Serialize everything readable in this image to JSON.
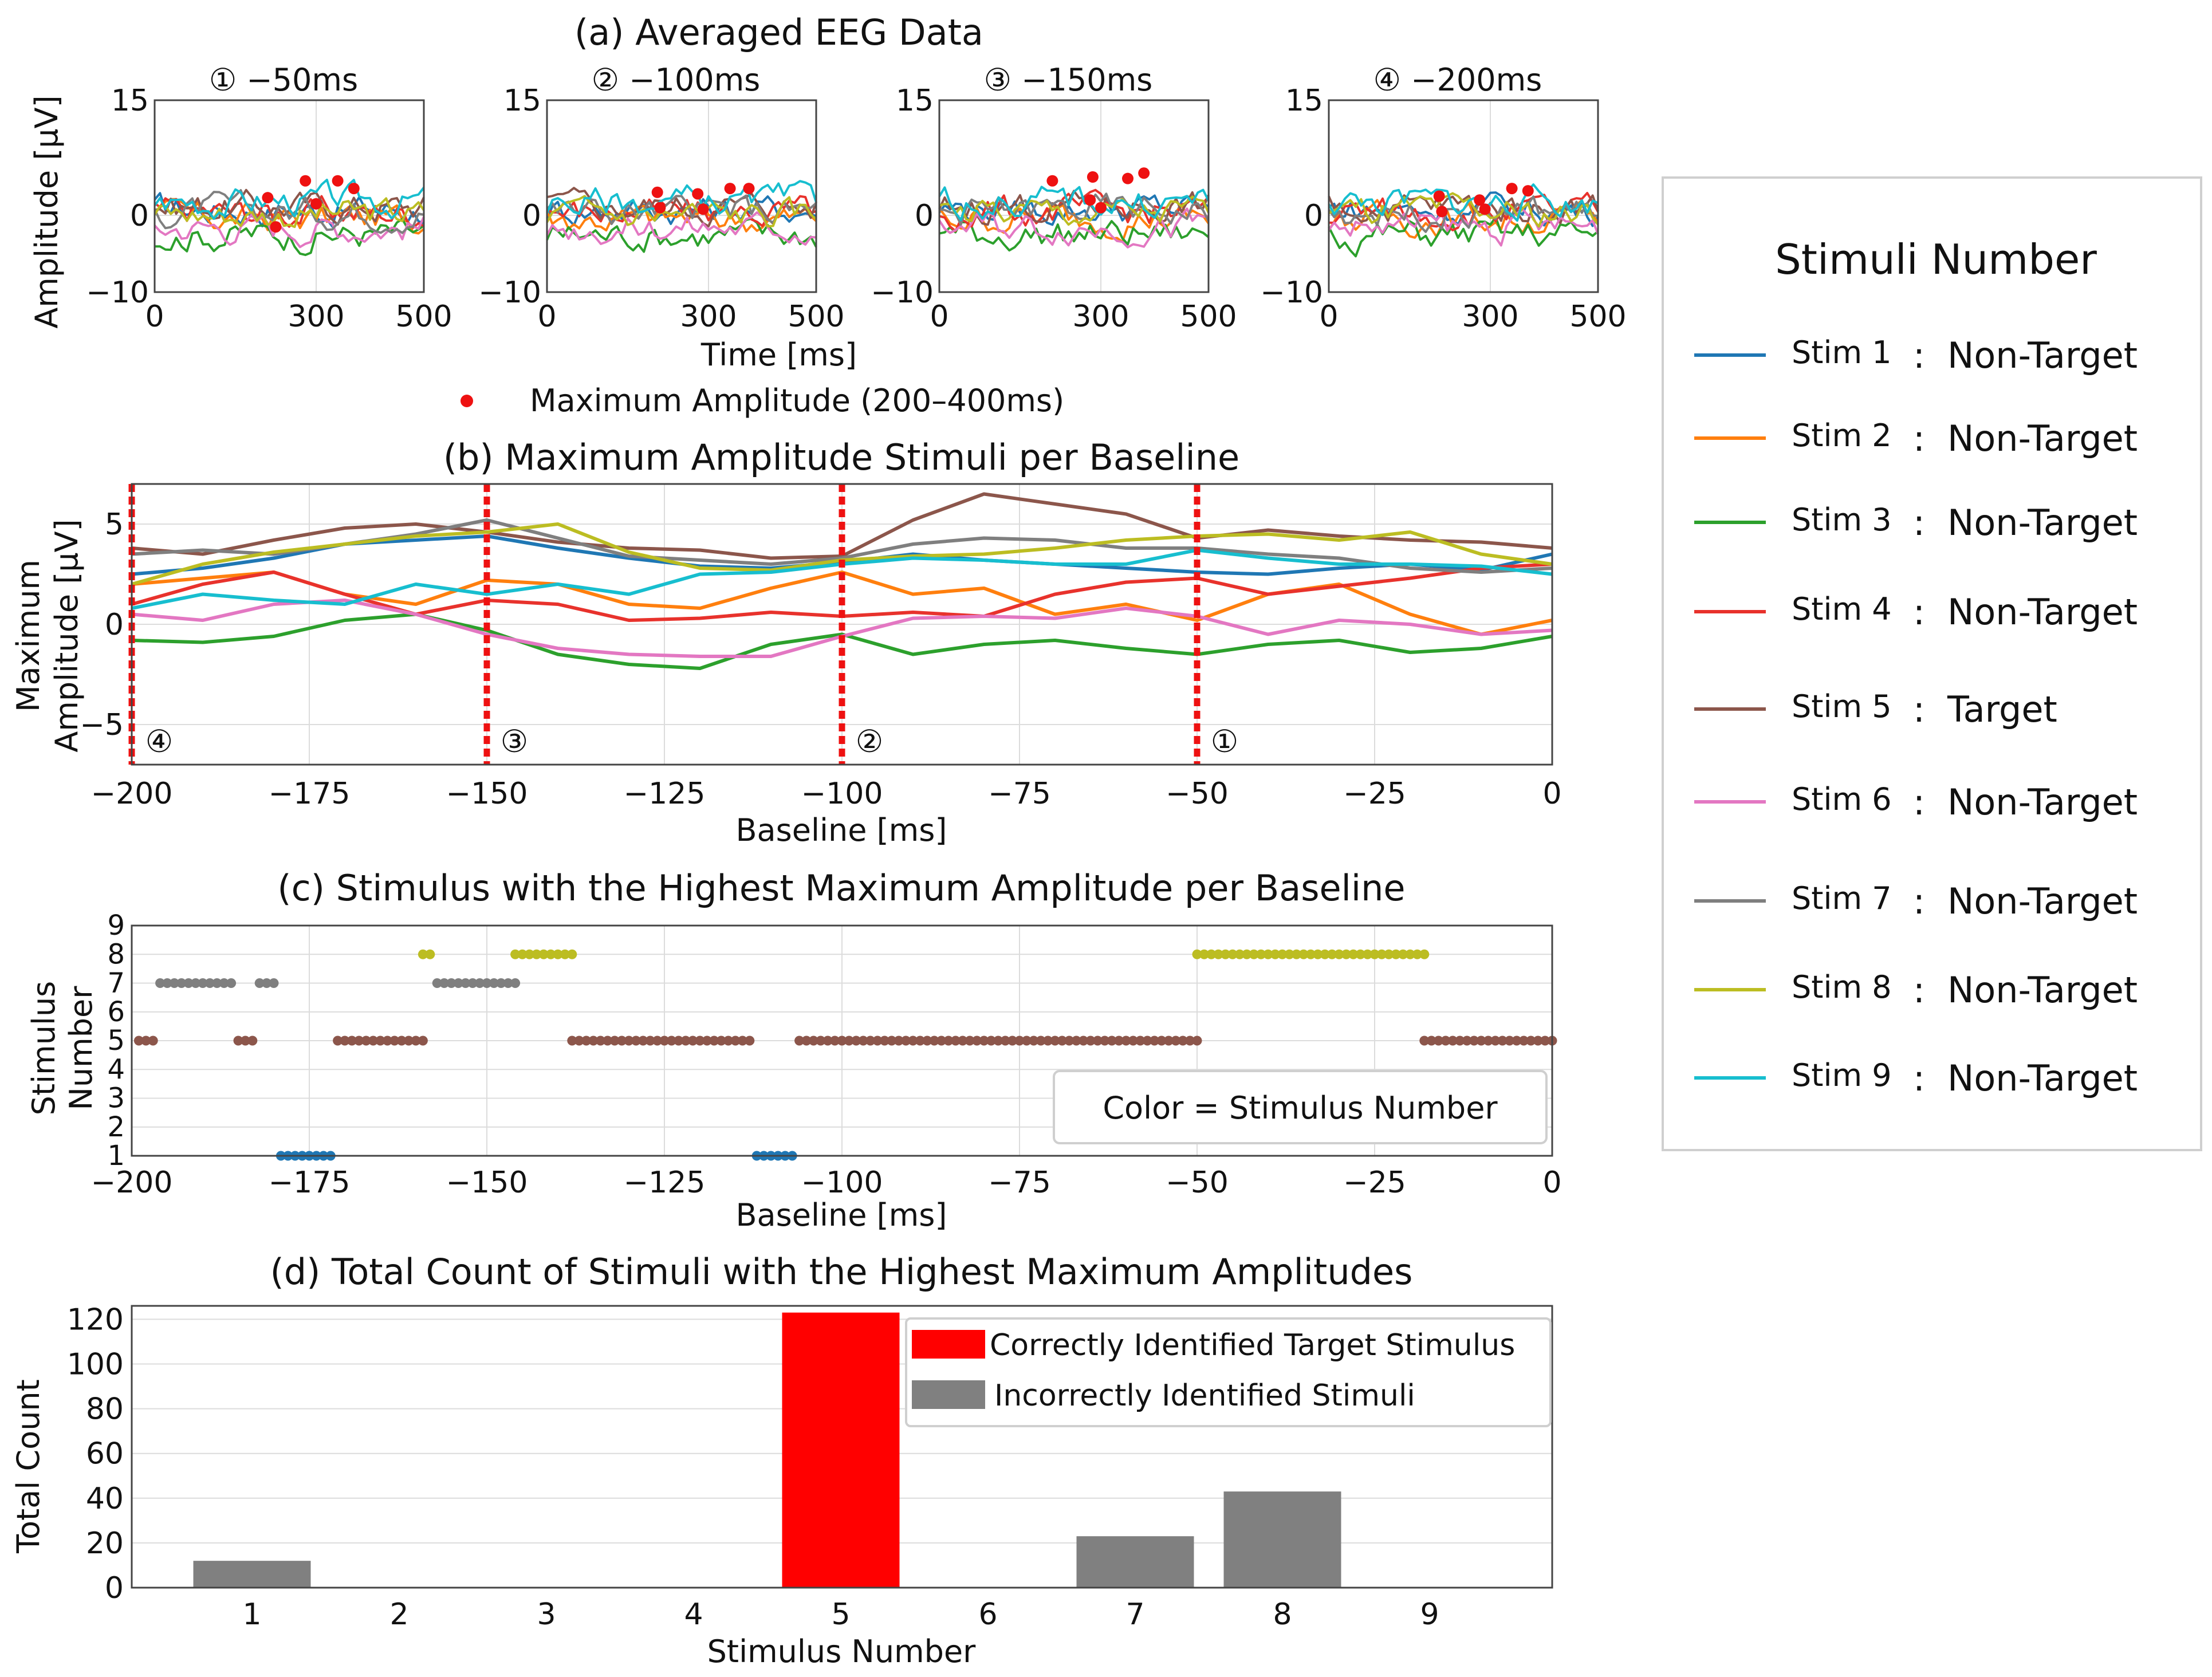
{
  "figure": {
    "legend": {
      "title": "Stimuli Number",
      "entries": [
        {
          "stim": "Stim 1",
          "sep": ":",
          "role": "Non-Target",
          "color": "#1f77b4",
          "role_color": "#111111"
        },
        {
          "stim": "Stim 2",
          "sep": ":",
          "role": "Non-Target",
          "color": "#ff7f0e",
          "role_color": "#111111"
        },
        {
          "stim": "Stim 3",
          "sep": ":",
          "role": "Non-Target",
          "color": "#2ca02c",
          "role_color": "#111111"
        },
        {
          "stim": "Stim 4",
          "sep": ":",
          "role": "Non-Target",
          "color": "#e8322c",
          "role_color": "#111111"
        },
        {
          "stim": "Stim 5",
          "sep": ":",
          "role": "Target",
          "color": "#8c564b",
          "role_color": "#ee1111"
        },
        {
          "stim": "Stim 6",
          "sep": ":",
          "role": "Non-Target",
          "color": "#e377c2",
          "role_color": "#111111"
        },
        {
          "stim": "Stim 7",
          "sep": ":",
          "role": "Non-Target",
          "color": "#7f7f7f",
          "role_color": "#111111"
        },
        {
          "stim": "Stim 8",
          "sep": ":",
          "role": "Non-Target",
          "color": "#bcbd22",
          "role_color": "#111111"
        },
        {
          "stim": "Stim 9",
          "sep": ":",
          "role": "Non-Target",
          "color": "#17becf",
          "role_color": "#111111"
        }
      ]
    }
  },
  "chart_data": [
    {
      "id": "a",
      "type": "line",
      "title": "(a) Averaged EEG Data",
      "xlabel": "Time [ms]",
      "ylabel": "Amplitude [μV]",
      "xlim": [
        0,
        500
      ],
      "ylim": [
        -10,
        15
      ],
      "xticks": [
        0,
        300,
        500
      ],
      "yticks": [
        -10,
        0,
        15
      ],
      "marker_legend": "Maximum Amplitude (200–400ms)",
      "marker_symbol": "●",
      "marker_color": "#ee1111",
      "subplots": [
        {
          "label": "① −50ms",
          "max_points": [
            {
              "x": 210,
              "y": 2.3
            },
            {
              "x": 225,
              "y": -1.5
            },
            {
              "x": 280,
              "y": 4.5
            },
            {
              "x": 300,
              "y": 1.5
            },
            {
              "x": 340,
              "y": 4.5
            },
            {
              "x": 370,
              "y": 3.5
            }
          ]
        },
        {
          "label": "② −100ms",
          "max_points": [
            {
              "x": 205,
              "y": 3.0
            },
            {
              "x": 210,
              "y": 1.0
            },
            {
              "x": 280,
              "y": 2.8
            },
            {
              "x": 290,
              "y": 0.8
            },
            {
              "x": 340,
              "y": 3.5
            },
            {
              "x": 375,
              "y": 3.5
            }
          ]
        },
        {
          "label": "③ −150ms",
          "max_points": [
            {
              "x": 210,
              "y": 4.5
            },
            {
              "x": 280,
              "y": 2.0
            },
            {
              "x": 285,
              "y": 5.0
            },
            {
              "x": 300,
              "y": 1.0
            },
            {
              "x": 350,
              "y": 4.8
            },
            {
              "x": 380,
              "y": 5.5
            }
          ]
        },
        {
          "label": "④ −200ms",
          "max_points": [
            {
              "x": 205,
              "y": 2.5
            },
            {
              "x": 210,
              "y": 0.5
            },
            {
              "x": 280,
              "y": 2.0
            },
            {
              "x": 290,
              "y": 0.8
            },
            {
              "x": 340,
              "y": 3.5
            },
            {
              "x": 370,
              "y": 3.2
            }
          ]
        }
      ]
    },
    {
      "id": "b",
      "type": "line",
      "title": "(b) Maximum Amplitude Stimuli per Baseline",
      "xlabel": "Baseline [ms]",
      "ylabel": "Maximum Amplitude [μV]",
      "ylabel_lines": [
        "Maximum",
        "Amplitude [μV]"
      ],
      "xlim": [
        -200,
        0
      ],
      "ylim": [
        -7,
        7
      ],
      "xticks": [
        -200,
        -175,
        -150,
        -125,
        -100,
        -75,
        -50,
        -25,
        0
      ],
      "xtick_labels": [
        "−200",
        "−175",
        "−150",
        "−125",
        "−100",
        "−75",
        "−50",
        "−25",
        "0"
      ],
      "yticks": [
        -5,
        0,
        5
      ],
      "ytick_labels": [
        "−5",
        "0",
        "5"
      ],
      "vlines": [
        {
          "x": -200,
          "label": "④"
        },
        {
          "x": -150,
          "label": "③"
        },
        {
          "x": -100,
          "label": "②"
        },
        {
          "x": -50,
          "label": "①"
        }
      ],
      "series": [
        {
          "name": "Stim 1",
          "x": [
            -200,
            -190,
            -180,
            -170,
            -160,
            -150,
            -140,
            -130,
            -120,
            -110,
            -100,
            -90,
            -80,
            -70,
            -60,
            -50,
            -40,
            -30,
            -20,
            -10,
            0
          ],
          "y": [
            2.5,
            2.8,
            3.3,
            4.0,
            4.2,
            4.4,
            3.8,
            3.3,
            2.9,
            2.8,
            3.1,
            3.5,
            3.2,
            3.0,
            2.8,
            2.6,
            2.5,
            2.8,
            3.0,
            2.7,
            3.5
          ]
        },
        {
          "name": "Stim 2",
          "x": [
            -200,
            -190,
            -180,
            -170,
            -160,
            -150,
            -140,
            -130,
            -120,
            -110,
            -100,
            -90,
            -80,
            -70,
            -60,
            -50,
            -40,
            -30,
            -20,
            -10,
            0
          ],
          "y": [
            2.0,
            2.3,
            2.6,
            1.5,
            1.0,
            2.2,
            2.0,
            1.0,
            0.8,
            1.8,
            2.6,
            1.5,
            1.8,
            0.5,
            1.0,
            0.2,
            1.5,
            2.0,
            0.5,
            -0.5,
            0.2
          ]
        },
        {
          "name": "Stim 3",
          "x": [
            -200,
            -190,
            -180,
            -170,
            -160,
            -150,
            -140,
            -130,
            -120,
            -110,
            -100,
            -90,
            -80,
            -70,
            -60,
            -50,
            -40,
            -30,
            -20,
            -10,
            0
          ],
          "y": [
            -0.8,
            -0.9,
            -0.6,
            0.2,
            0.5,
            -0.3,
            -1.5,
            -2.0,
            -2.2,
            -1.0,
            -0.5,
            -1.5,
            -1.0,
            -0.8,
            -1.2,
            -1.5,
            -1.0,
            -0.8,
            -1.4,
            -1.2,
            -0.6
          ]
        },
        {
          "name": "Stim 4",
          "x": [
            -200,
            -190,
            -180,
            -170,
            -160,
            -150,
            -140,
            -130,
            -120,
            -110,
            -100,
            -90,
            -80,
            -70,
            -60,
            -50,
            -40,
            -30,
            -20,
            -10,
            0
          ],
          "y": [
            1.0,
            2.0,
            2.6,
            1.5,
            0.5,
            1.2,
            1.0,
            0.2,
            0.3,
            0.6,
            0.4,
            0.6,
            0.4,
            1.5,
            2.1,
            2.3,
            1.5,
            1.9,
            2.3,
            2.8,
            3.0
          ]
        },
        {
          "name": "Stim 5",
          "x": [
            -200,
            -190,
            -180,
            -170,
            -160,
            -150,
            -140,
            -130,
            -120,
            -110,
            -100,
            -90,
            -80,
            -70,
            -60,
            -50,
            -40,
            -30,
            -20,
            -10,
            0
          ],
          "y": [
            3.8,
            3.5,
            4.2,
            4.8,
            5.0,
            4.6,
            4.1,
            3.8,
            3.7,
            3.3,
            3.4,
            5.2,
            6.5,
            6.0,
            5.5,
            4.3,
            4.7,
            4.4,
            4.2,
            4.1,
            3.8
          ]
        },
        {
          "name": "Stim 6",
          "x": [
            -200,
            -190,
            -180,
            -170,
            -160,
            -150,
            -140,
            -130,
            -120,
            -110,
            -100,
            -90,
            -80,
            -70,
            -60,
            -50,
            -40,
            -30,
            -20,
            -10,
            0
          ],
          "y": [
            0.5,
            0.2,
            1.0,
            1.2,
            0.5,
            -0.5,
            -1.2,
            -1.5,
            -1.6,
            -1.6,
            -0.6,
            0.3,
            0.4,
            0.3,
            0.8,
            0.4,
            -0.5,
            0.2,
            0.0,
            -0.5,
            -0.3
          ]
        },
        {
          "name": "Stim 7",
          "x": [
            -200,
            -190,
            -180,
            -170,
            -160,
            -150,
            -140,
            -130,
            -120,
            -110,
            -100,
            -90,
            -80,
            -70,
            -60,
            -50,
            -40,
            -30,
            -20,
            -10,
            0
          ],
          "y": [
            3.5,
            3.7,
            3.5,
            4.0,
            4.5,
            5.2,
            4.3,
            3.4,
            3.2,
            3.0,
            3.3,
            4.0,
            4.3,
            4.2,
            3.8,
            3.8,
            3.5,
            3.3,
            2.8,
            2.6,
            2.8
          ]
        },
        {
          "name": "Stim 8",
          "x": [
            -200,
            -190,
            -180,
            -170,
            -160,
            -150,
            -140,
            -130,
            -120,
            -110,
            -100,
            -90,
            -80,
            -70,
            -60,
            -50,
            -40,
            -30,
            -20,
            -10,
            0
          ],
          "y": [
            2.0,
            3.0,
            3.6,
            4.0,
            4.4,
            4.6,
            5.0,
            3.6,
            2.8,
            2.7,
            3.2,
            3.4,
            3.5,
            3.8,
            4.2,
            4.4,
            4.5,
            4.2,
            4.6,
            3.5,
            3.0
          ]
        },
        {
          "name": "Stim 9",
          "x": [
            -200,
            -190,
            -180,
            -170,
            -160,
            -150,
            -140,
            -130,
            -120,
            -110,
            -100,
            -90,
            -80,
            -70,
            -60,
            -50,
            -40,
            -30,
            -20,
            -10,
            0
          ],
          "y": [
            0.8,
            1.5,
            1.2,
            1.0,
            2.0,
            1.5,
            2.0,
            1.5,
            2.5,
            2.6,
            3.0,
            3.3,
            3.2,
            3.0,
            3.0,
            3.7,
            3.3,
            3.0,
            3.0,
            2.9,
            2.5
          ]
        }
      ]
    },
    {
      "id": "c",
      "type": "scatter",
      "title": "(c) Stimulus with the Highest Maximum Amplitude per Baseline",
      "xlabel": "Baseline [ms]",
      "ylabel": "Stimulus Number",
      "ylabel_lines": [
        "Stimulus",
        "Number"
      ],
      "xlim": [
        -200,
        0
      ],
      "ylim": [
        1,
        9
      ],
      "xticks": [
        -200,
        -175,
        -150,
        -125,
        -100,
        -75,
        -50,
        -25,
        0
      ],
      "xtick_labels": [
        "−200",
        "−175",
        "−150",
        "−125",
        "−100",
        "−75",
        "−50",
        "−25",
        "0"
      ],
      "yticks": [
        1,
        2,
        3,
        4,
        5,
        6,
        7,
        8,
        9
      ],
      "note": "Color = Stimulus Number",
      "step_ms": 1,
      "segments": [
        {
          "stim": 5,
          "x_start": -199,
          "x_end": -197
        },
        {
          "stim": 7,
          "x_start": -196,
          "x_end": -186
        },
        {
          "stim": 5,
          "x_start": -185,
          "x_end": -183
        },
        {
          "stim": 7,
          "x_start": -182,
          "x_end": -180
        },
        {
          "stim": 1,
          "x_start": -179,
          "x_end": -172
        },
        {
          "stim": 5,
          "x_start": -171,
          "x_end": -159
        },
        {
          "stim": 8,
          "x_start": -159,
          "x_end": -158
        },
        {
          "stim": 7,
          "x_start": -157,
          "x_end": -146
        },
        {
          "stim": 8,
          "x_start": -146,
          "x_end": -138
        },
        {
          "stim": 5,
          "x_start": -138,
          "x_end": -113
        },
        {
          "stim": 1,
          "x_start": -112,
          "x_end": -107
        },
        {
          "stim": 5,
          "x_start": -106,
          "x_end": -50
        },
        {
          "stim": 8,
          "x_start": -50,
          "x_end": -18
        },
        {
          "stim": 5,
          "x_start": -18,
          "x_end": 0
        }
      ]
    },
    {
      "id": "d",
      "type": "bar",
      "title": "(d) Total Count of Stimuli with the Highest Maximum Amplitudes",
      "xlabel": "Stimulus Number",
      "ylabel": "Total Count",
      "categories": [
        "1",
        "2",
        "3",
        "4",
        "5",
        "6",
        "7",
        "8",
        "9"
      ],
      "values": [
        12,
        0,
        0,
        0,
        123,
        0,
        23,
        43,
        0
      ],
      "bar_roles": [
        "incorrect",
        "incorrect",
        "incorrect",
        "incorrect",
        "correct",
        "incorrect",
        "incorrect",
        "incorrect",
        "incorrect"
      ],
      "ylim": [
        0,
        126
      ],
      "yticks": [
        0,
        20,
        40,
        60,
        80,
        100,
        120
      ],
      "legend": [
        {
          "label": "Correctly Identified Target Stimulus",
          "color": "#ff0000"
        },
        {
          "label": "Incorrectly Identified Stimuli",
          "color": "#808080"
        }
      ]
    }
  ]
}
